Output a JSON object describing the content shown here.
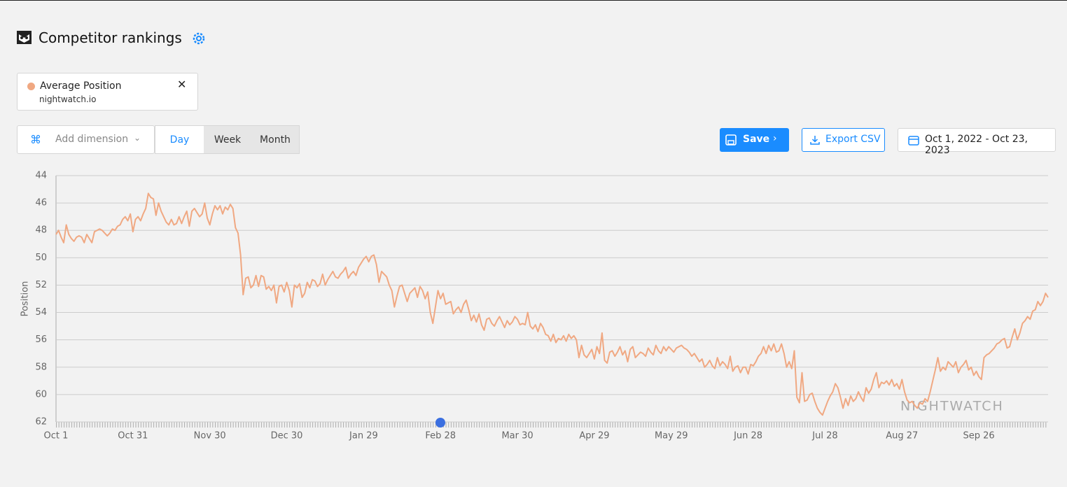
{
  "header": {
    "title": "Competitor rankings"
  },
  "filter": {
    "series_site": "nightwatch.io"
  },
  "controls": {
    "add_dimension": "Add dimension",
    "tabs": [
      "Day",
      "Week",
      "Month"
    ],
    "save": "Save",
    "export": "Export CSV",
    "date_range": "Oct 1, 2022 - Oct 23, 2023"
  },
  "chart_data": {
    "type": "line",
    "y_label": "Position",
    "watermark": "NIGHTWATCH",
    "y_inverted": true,
    "grid": true,
    "ylim": [
      44,
      62
    ],
    "yticks": [
      44,
      46,
      48,
      50,
      52,
      54,
      56,
      58,
      60,
      62
    ],
    "categories": [
      "Oct 1",
      null,
      null,
      null,
      null,
      null,
      null,
      null,
      null,
      null,
      null,
      null,
      null,
      null,
      null,
      null,
      null,
      null,
      null,
      null,
      null,
      null,
      null,
      null,
      null,
      null,
      null,
      null,
      null,
      null,
      "Oct 31",
      null,
      null,
      null,
      null,
      null,
      null,
      null,
      null,
      null,
      null,
      null,
      null,
      null,
      null,
      null,
      null,
      null,
      null,
      null,
      null,
      null,
      null,
      null,
      null,
      null,
      null,
      null,
      null,
      null,
      "Nov 30",
      null,
      null,
      null,
      null,
      null,
      null,
      null,
      null,
      null,
      null,
      null,
      null,
      null,
      null,
      null,
      null,
      null,
      null,
      null,
      null,
      null,
      null,
      null,
      null,
      null,
      null,
      null,
      null,
      null,
      "Dec 30",
      null,
      null,
      null,
      null,
      null,
      null,
      null,
      null,
      null,
      null,
      null,
      null,
      null,
      null,
      null,
      null,
      null,
      null,
      null,
      null,
      null,
      null,
      null,
      null,
      null,
      null,
      null,
      null,
      null,
      "Jan 29",
      null,
      null,
      null,
      null,
      null,
      null,
      null,
      null,
      null,
      null,
      null,
      null,
      null,
      null,
      null,
      null,
      null,
      null,
      null,
      null,
      null,
      null,
      null,
      null,
      null,
      null,
      null,
      null,
      null,
      "Feb 28",
      null,
      null,
      null,
      null,
      null,
      null,
      null,
      null,
      null,
      null,
      null,
      null,
      null,
      null,
      null,
      null,
      null,
      null,
      null,
      null,
      null,
      null,
      null,
      null,
      null,
      null,
      null,
      null,
      null,
      "Mar 30",
      null,
      null,
      null,
      null,
      null,
      null,
      null,
      null,
      null,
      null,
      null,
      null,
      null,
      null,
      null,
      null,
      null,
      null,
      null,
      null,
      null,
      null,
      null,
      null,
      null,
      null,
      null,
      null,
      null,
      "Apr 29",
      null,
      null,
      null,
      null,
      null,
      null,
      null,
      null,
      null,
      null,
      null,
      null,
      null,
      null,
      null,
      null,
      null,
      null,
      null,
      null,
      null,
      null,
      null,
      null,
      null,
      null,
      null,
      null,
      null,
      "May 29",
      null,
      null,
      null,
      null,
      null,
      null,
      null,
      null,
      null,
      null,
      null,
      null,
      null,
      null,
      null,
      null,
      null,
      null,
      null,
      null,
      null,
      null,
      null,
      null,
      null,
      null,
      null,
      null,
      null,
      "Jun 28",
      null,
      null,
      null,
      null,
      null,
      null,
      null,
      null,
      null,
      null,
      null,
      null,
      null,
      null,
      null,
      null,
      null,
      null,
      null,
      null,
      null,
      null,
      null,
      null,
      null,
      null,
      null,
      null,
      null,
      "Jul 28",
      null,
      null,
      null,
      null,
      null,
      null,
      null,
      null,
      null,
      null,
      null,
      null,
      null,
      null,
      null,
      null,
      null,
      null,
      null,
      null,
      null,
      null,
      null,
      null,
      null,
      null,
      null,
      null,
      null,
      "Aug 27",
      null,
      null,
      null,
      null,
      null,
      null,
      null,
      null,
      null,
      null,
      null,
      null,
      null,
      null,
      null,
      null,
      null,
      null,
      null,
      null,
      null,
      null,
      null,
      null,
      null,
      null,
      null,
      null,
      null,
      "Sep 26",
      null,
      null,
      null,
      null,
      null,
      null,
      null,
      null,
      null,
      null,
      null,
      null,
      null,
      null,
      null,
      null,
      null,
      null,
      null,
      null,
      null,
      null,
      null,
      null,
      null,
      null,
      null
    ],
    "series": [
      {
        "name": "Average Position",
        "color": "#f0a882",
        "values": [
          48.3,
          48,
          48.5,
          48.9,
          47.6,
          48.3,
          48.6,
          48.8,
          48.5,
          48.4,
          48.5,
          48.9,
          48.3,
          48.6,
          48.9,
          48.1,
          48.0,
          47.9,
          48.0,
          48.2,
          48.4,
          48.2,
          47.9,
          48.0,
          47.7,
          47.6,
          47.2,
          47.0,
          47.3,
          46.8,
          48.1,
          47.2,
          47.0,
          47.3,
          46.8,
          46.4,
          45.3,
          45.6,
          45.7,
          46.9,
          46.0,
          46.6,
          47.0,
          47.4,
          47.6,
          47.2,
          47.6,
          47.5,
          47.0,
          47.5,
          47.0,
          46.6,
          47.7,
          46.6,
          46.4,
          46.7,
          47.0,
          46.8,
          46.0,
          47.1,
          47.6,
          46.8,
          46.2,
          46.5,
          46.2,
          46.8,
          46.3,
          46.5,
          46.1,
          46.4,
          47.8,
          48.2,
          49.8,
          52.7,
          51.5,
          51.4,
          52.2,
          52.0,
          51.3,
          52.1,
          51.3,
          51.4,
          52.3,
          52.1,
          52.4,
          52.0,
          53.3,
          52.1,
          52.0,
          52.5,
          51.8,
          52.4,
          53.6,
          52.0,
          52.2,
          51.9,
          52.9,
          52.6,
          51.8,
          52.2,
          51.6,
          51.7,
          52.1,
          51.9,
          51.2,
          52.0,
          51.6,
          51.3,
          51.0,
          51.4,
          51.5,
          51.2,
          51.0,
          50.7,
          51.5,
          51.2,
          51.0,
          51.3,
          50.7,
          50.4,
          50.1,
          49.9,
          50.3,
          49.9,
          49.8,
          50.5,
          51.8,
          51.0,
          51.2,
          51.4,
          52.0,
          52.4,
          53.6,
          52.8,
          52.1,
          52.0,
          52.6,
          53.2,
          52.6,
          52.4,
          52.2,
          52.9,
          52.1,
          52.4,
          53.0,
          52.5,
          54.0,
          54.8,
          53.6,
          52.4,
          53.0,
          52.6,
          53.4,
          53.3,
          53.2,
          54.1,
          53.8,
          53.6,
          54.0,
          53.4,
          53.1,
          53.8,
          54.6,
          54.2,
          54.7,
          54.1,
          54.9,
          55.3,
          54.5,
          54.4,
          54.8,
          55.0,
          54.6,
          54.3,
          54.7,
          55.1,
          54.6,
          54.9,
          54.7,
          54.3,
          54.5,
          54.9,
          54.8,
          54.9,
          54.0,
          55.0,
          55.2,
          54.9,
          55.4,
          54.8,
          55.1,
          55.6,
          55.7,
          56.1,
          55.6,
          56.2,
          55.9,
          56.0,
          55.7,
          56.1,
          55.6,
          55.9,
          55.7,
          56.0,
          57.3,
          56.4,
          57.1,
          57.3,
          57.0,
          56.7,
          57.4,
          56.5,
          57.0,
          55.5,
          57.5,
          57.7,
          56.9,
          56.8,
          57.2,
          56.9,
          56.5,
          57.1,
          56.8,
          57.6,
          56.7,
          56.5,
          57.3,
          57.1,
          56.9,
          57.0,
          57.2,
          56.6,
          56.9,
          57.1,
          56.4,
          56.8,
          57.0,
          56.5,
          56.8,
          56.5,
          56.7,
          56.9,
          56.6,
          56.5,
          56.4,
          56.6,
          56.7,
          56.9,
          57.2,
          57.0,
          57.3,
          57.6,
          57.4,
          58.0,
          57.8,
          57.5,
          57.9,
          58.1,
          57.3,
          57.9,
          57.6,
          57.8,
          58.1,
          57.2,
          58.3,
          58.0,
          57.9,
          58.4,
          58.0,
          58.0,
          58.5,
          57.8,
          57.9,
          57.6,
          57.2,
          57.0,
          56.5,
          57.0,
          56.4,
          56.8,
          56.3,
          56.9,
          56.8,
          56.3,
          57.0,
          58.0,
          57.6,
          58.1,
          56.8,
          60.2,
          60.6,
          58.4,
          60.5,
          60.4,
          60.0,
          59.9,
          60.5,
          61.0,
          61.3,
          61.5,
          61.0,
          60.5,
          60.1,
          59.8,
          59.2,
          59.5,
          60.2,
          61.0,
          60.3,
          60.8,
          60.1,
          60.5,
          60.3,
          59.8,
          60.2,
          60.5,
          59.5,
          59.9,
          59.6,
          58.9,
          58.4,
          59.5,
          59.1,
          59.2,
          59.0,
          59.3,
          58.9,
          59.4,
          59.2,
          59.6,
          58.9,
          59.8,
          60.4,
          60.6,
          60.5,
          60.8,
          61.0,
          60.6,
          60.7,
          60.3,
          60.5,
          59.8,
          59.0,
          58.2,
          57.3,
          58.3,
          58.0,
          58.2,
          57.6,
          57.8,
          58.0,
          57.6,
          58.4,
          58.0,
          57.8,
          57.5,
          58.2,
          58.0,
          58.6,
          58.3,
          58.7,
          58.9,
          57.3,
          57.1,
          57.0,
          56.8,
          56.6,
          56.3,
          56.2,
          56.0,
          55.9,
          56.6,
          56.5,
          55.8,
          55.2,
          56.0,
          55.5,
          54.8,
          54.6,
          54.3,
          54.5,
          53.9,
          53.8,
          53.2,
          53.5,
          53.2,
          52.6,
          52.9
        ]
      }
    ]
  }
}
